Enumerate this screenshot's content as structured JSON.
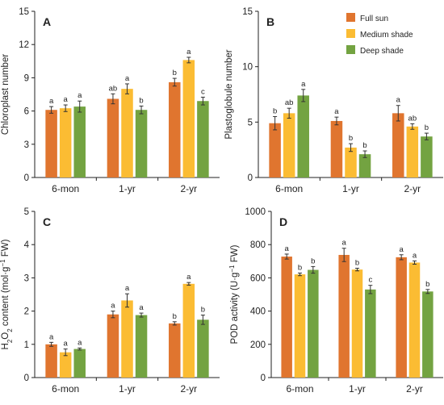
{
  "chart_data": [
    {
      "type": "bar",
      "panel": "A",
      "categories": [
        "6-mon",
        "1-yr",
        "2-yr"
      ],
      "ylabel": "Chloroplast number",
      "ylim": [
        0,
        15
      ],
      "yticks": [
        0,
        3,
        6,
        9,
        12,
        15
      ],
      "series": [
        {
          "name": "Full sun",
          "values": [
            6.1,
            7.1,
            8.6
          ],
          "errors": [
            0.3,
            0.45,
            0.35
          ],
          "sig": [
            "a",
            "ab",
            "b"
          ]
        },
        {
          "name": "Medium shade",
          "values": [
            6.25,
            8.0,
            10.6
          ],
          "errors": [
            0.3,
            0.45,
            0.25
          ],
          "sig": [
            "a",
            "a",
            "a"
          ]
        },
        {
          "name": "Deep shade",
          "values": [
            6.4,
            6.1,
            6.9
          ],
          "errors": [
            0.5,
            0.35,
            0.35
          ],
          "sig": [
            "a",
            "b",
            "c"
          ]
        }
      ]
    },
    {
      "type": "bar",
      "panel": "B",
      "categories": [
        "6-mon",
        "1-yr",
        "2-yr"
      ],
      "ylabel": "Plastoglobule number",
      "ylim": [
        0,
        15
      ],
      "yticks": [
        0,
        5,
        10,
        15
      ],
      "legend": "top-right",
      "series": [
        {
          "name": "Full sun",
          "values": [
            4.9,
            5.1,
            5.8
          ],
          "errors": [
            0.6,
            0.35,
            0.7
          ],
          "sig": [
            "b",
            "a",
            "a"
          ]
        },
        {
          "name": "Medium shade",
          "values": [
            5.8,
            2.7,
            4.6
          ],
          "errors": [
            0.45,
            0.35,
            0.25
          ],
          "sig": [
            "ab",
            "b",
            "ab"
          ]
        },
        {
          "name": "Deep shade",
          "values": [
            7.4,
            2.1,
            3.7
          ],
          "errors": [
            0.55,
            0.3,
            0.3
          ],
          "sig": [
            "a",
            "b",
            "b"
          ]
        }
      ]
    },
    {
      "type": "bar",
      "panel": "C",
      "categories": [
        "6-mon",
        "1-yr",
        "2-yr"
      ],
      "ylabel": "H2O2 content (mol·g−1 FW)",
      "ylim": [
        0,
        5
      ],
      "yticks": [
        0,
        1,
        2,
        3,
        4,
        5
      ],
      "series": [
        {
          "name": "Full sun",
          "values": [
            1.0,
            1.9,
            1.63
          ],
          "errors": [
            0.06,
            0.1,
            0.05
          ],
          "sig": [
            "a",
            "a",
            "b"
          ]
        },
        {
          "name": "Medium shade",
          "values": [
            0.76,
            2.32,
            2.82
          ],
          "errors": [
            0.1,
            0.2,
            0.04
          ],
          "sig": [
            "a",
            "a",
            "a"
          ]
        },
        {
          "name": "Deep shade",
          "values": [
            0.86,
            1.88,
            1.74
          ],
          "errors": [
            0.03,
            0.06,
            0.14
          ],
          "sig": [
            "a",
            "a",
            "b"
          ]
        }
      ]
    },
    {
      "type": "bar",
      "panel": "D",
      "categories": [
        "6-mon",
        "1-yr",
        "2-yr"
      ],
      "ylabel": "POD activity (U·g−1 FW)",
      "ylim": [
        0,
        1000
      ],
      "yticks": [
        0,
        200,
        400,
        600,
        800,
        1000
      ],
      "series": [
        {
          "name": "Full sun",
          "values": [
            728,
            738,
            724
          ],
          "errors": [
            15,
            40,
            15
          ],
          "sig": [
            "a",
            "a",
            "a"
          ]
        },
        {
          "name": "Medium shade",
          "values": [
            621,
            650,
            692
          ],
          "errors": [
            8,
            8,
            10
          ],
          "sig": [
            "b",
            "b",
            "a"
          ]
        },
        {
          "name": "Deep shade",
          "values": [
            648,
            530,
            518
          ],
          "errors": [
            20,
            25,
            12
          ],
          "sig": [
            "b",
            "c",
            "b"
          ]
        }
      ]
    }
  ],
  "colors": {
    "Full sun": "#e0752f",
    "Medium shade": "#fbbc33",
    "Deep shade": "#73a341",
    "axis": "#222222",
    "errorbar": "#333333"
  }
}
